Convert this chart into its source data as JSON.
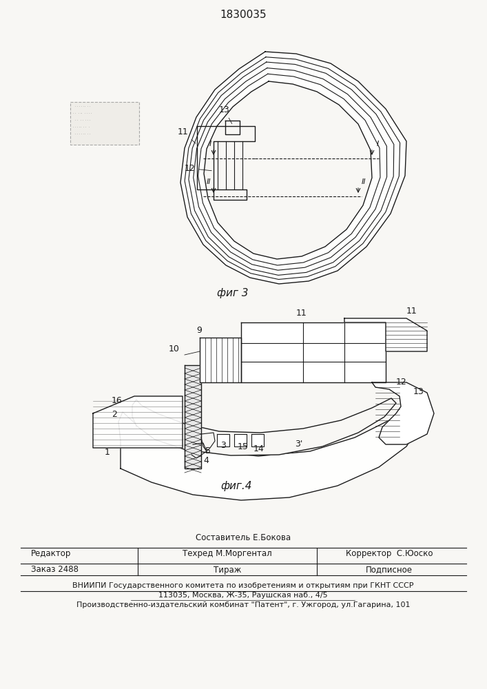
{
  "patent_number": "1830035",
  "fig3_label": "фиг 3",
  "fig4_label": "фиг.4",
  "bg_color": "#f8f7f4",
  "line_color": "#1a1a1a",
  "footer_col1_row1": "",
  "footer_col2_row1": "Составитель Е.Бокова",
  "footer_col1_row2": "Редактор",
  "footer_col2_row2": "Техред М.Моргентал",
  "footer_col3_row2": "Корректор  С.Юоско",
  "footer_zakaz": "Заказ 2488",
  "footer_tirazh": "Тираж",
  "footer_podpisnoe": "Подписное",
  "footer_vniip": "ВНИИПИ Государственного комитета по изобретениям и открытиям при ГКНТ СССР",
  "footer_addr": "113035, Москва, Ж-35, Раушская наб., 4/5",
  "footer_patent": "Производственно-издательский комбинат \"Патент\", г. Ужгород, ул.Гагарина, 101"
}
